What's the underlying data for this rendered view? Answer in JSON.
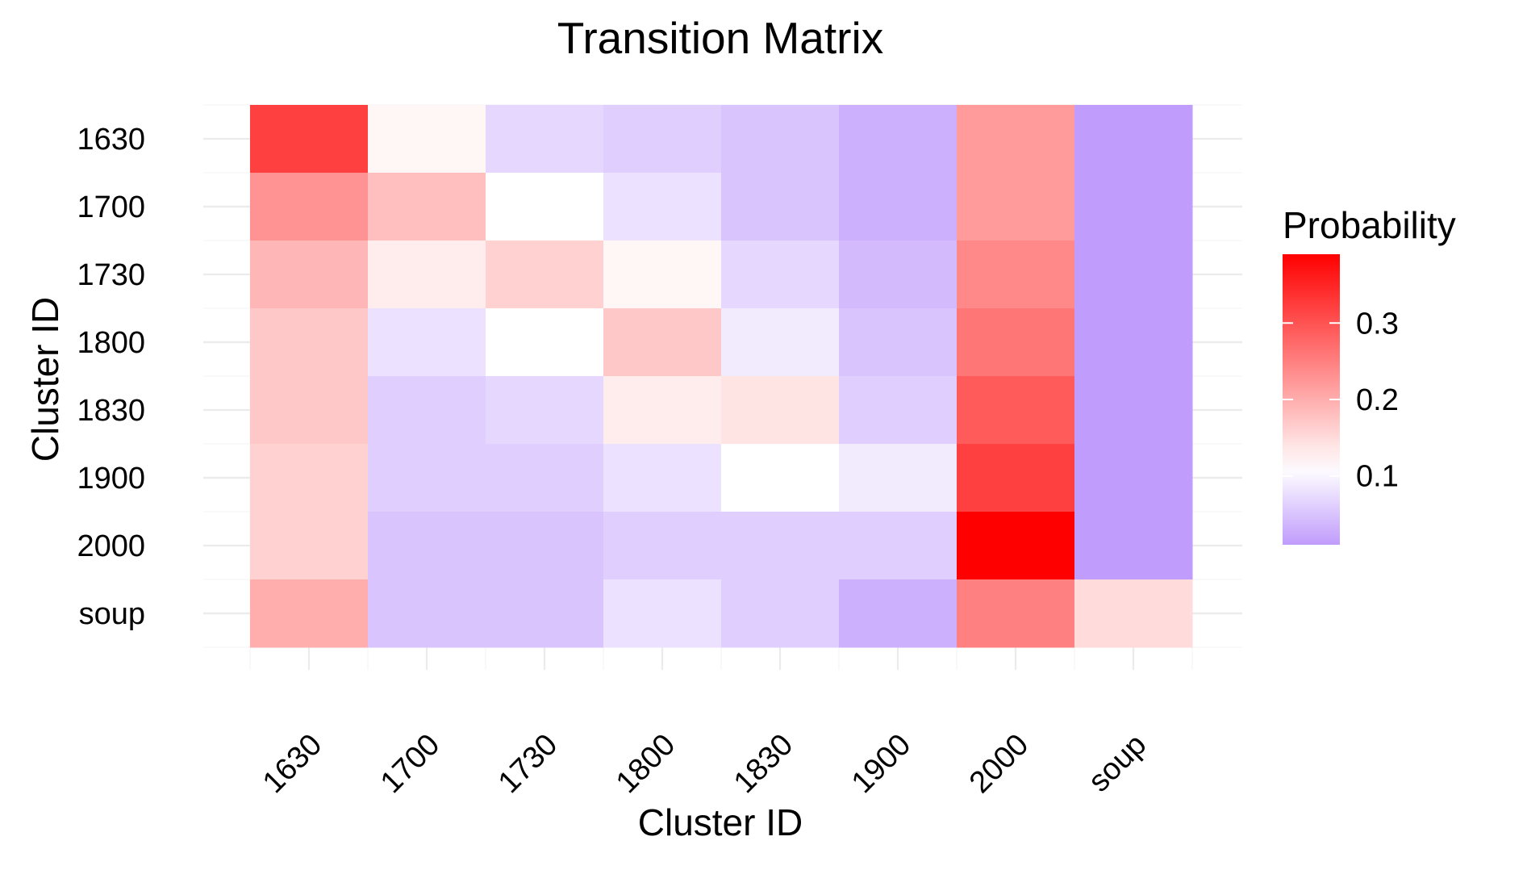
{
  "chart_data": {
    "type": "heatmap",
    "title": "Transition Matrix",
    "xlabel": "Cluster ID",
    "ylabel": "Cluster ID",
    "x_categories": [
      "1630",
      "1700",
      "1730",
      "1800",
      "1830",
      "1900",
      "2000",
      "soup"
    ],
    "y_categories": [
      "1630",
      "1700",
      "1730",
      "1800",
      "1830",
      "1900",
      "2000",
      "soup"
    ],
    "values": [
      [
        0.32,
        0.12,
        0.07,
        0.06,
        0.05,
        0.03,
        0.22,
        0.01
      ],
      [
        0.23,
        0.18,
        0.11,
        0.08,
        0.05,
        0.03,
        0.22,
        0.01
      ],
      [
        0.19,
        0.13,
        0.16,
        0.12,
        0.07,
        0.04,
        0.24,
        0.01
      ],
      [
        0.17,
        0.08,
        0.11,
        0.17,
        0.09,
        0.05,
        0.26,
        0.01
      ],
      [
        0.17,
        0.06,
        0.07,
        0.13,
        0.14,
        0.06,
        0.29,
        0.01
      ],
      [
        0.16,
        0.06,
        0.06,
        0.08,
        0.11,
        0.09,
        0.32,
        0.01
      ],
      [
        0.16,
        0.05,
        0.05,
        0.06,
        0.06,
        0.06,
        0.39,
        0.01
      ],
      [
        0.2,
        0.05,
        0.05,
        0.08,
        0.06,
        0.03,
        0.25,
        0.15
      ]
    ],
    "legend": {
      "title": "Probability",
      "ticks": [
        "0.1",
        "0.2",
        "0.3"
      ],
      "tick_values": [
        0.1,
        0.2,
        0.3
      ],
      "min": 0.01,
      "max": 0.39,
      "midpoint": 0.11,
      "position": "right"
    },
    "colors": {
      "low": "#c09cfc",
      "mid": "#ffffff",
      "high": "#ff0000"
    },
    "grid": true
  }
}
